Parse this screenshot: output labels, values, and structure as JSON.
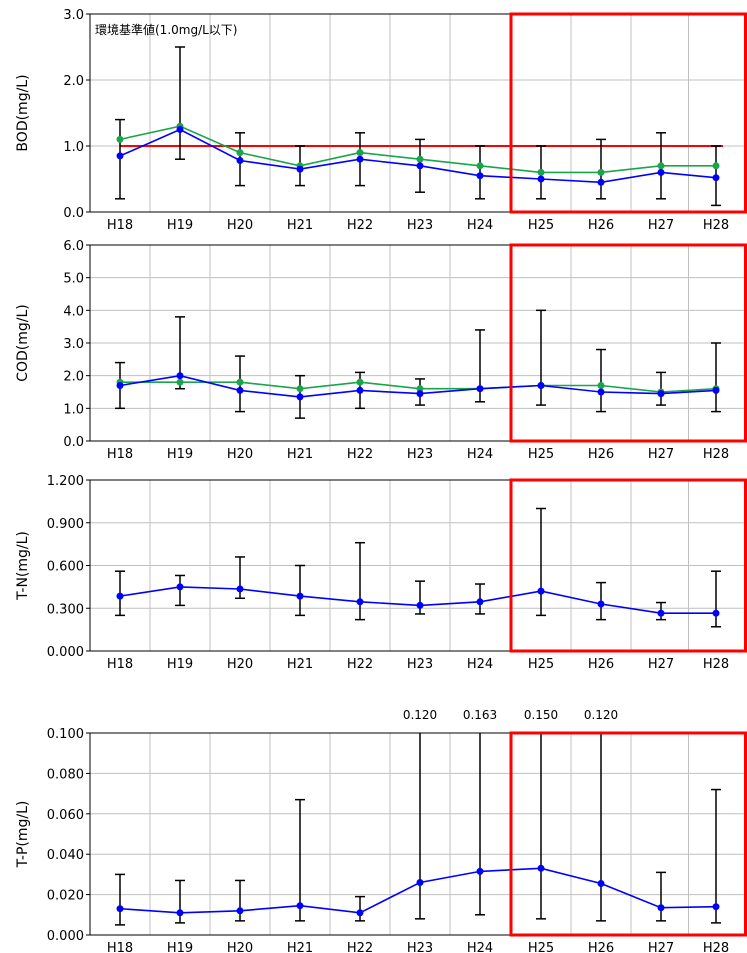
{
  "colors": {
    "series_blue": "#0000ff",
    "series_green": "#19a64a",
    "error_bar": "#000000",
    "standard_line": "#ff0000",
    "highlight_box": "#ff0000",
    "grid": "#c0c0c0",
    "axis": "#000000"
  },
  "chart_data": [
    {
      "type": "line",
      "ylabel": "BOD(mg/L)",
      "categories": [
        "H18",
        "H19",
        "H20",
        "H21",
        "H22",
        "H23",
        "H24",
        "H25",
        "H26",
        "H27",
        "H28"
      ],
      "ylim": [
        0,
        3.0
      ],
      "yticks": [
        0,
        1.0,
        2.0,
        3.0
      ],
      "ytick_labels": [
        "0.0",
        "1.0",
        "2.0",
        "3.0"
      ],
      "grid": true,
      "series": [
        {
          "color": "blue",
          "values": [
            0.85,
            1.25,
            0.78,
            0.65,
            0.8,
            0.7,
            0.55,
            0.5,
            0.45,
            0.6,
            0.52
          ]
        },
        {
          "color": "green",
          "values": [
            1.1,
            1.3,
            0.9,
            0.7,
            0.9,
            0.8,
            0.7,
            0.6,
            0.6,
            0.7,
            0.7
          ]
        }
      ],
      "error_bars": {
        "min": [
          0.2,
          0.8,
          0.4,
          0.4,
          0.4,
          0.3,
          0.2,
          0.2,
          0.2,
          0.2,
          0.1
        ],
        "max": [
          1.4,
          2.5,
          1.2,
          1.0,
          1.2,
          1.1,
          1.0,
          1.0,
          1.1,
          1.2,
          1.0
        ]
      },
      "reference_line": {
        "value": 1.0,
        "from": "H18",
        "to": "H28",
        "label": "環境基準値(1.0mg/L以下)"
      },
      "highlight": {
        "from": "H25",
        "to": "H28"
      }
    },
    {
      "type": "line",
      "ylabel": "COD(mg/L)",
      "categories": [
        "H18",
        "H19",
        "H20",
        "H21",
        "H22",
        "H23",
        "H24",
        "H25",
        "H26",
        "H27",
        "H28"
      ],
      "ylim": [
        0,
        6.0
      ],
      "yticks": [
        0,
        1.0,
        2.0,
        3.0,
        4.0,
        5.0,
        6.0
      ],
      "ytick_labels": [
        "0.0",
        "1.0",
        "2.0",
        "3.0",
        "4.0",
        "5.0",
        "6.0"
      ],
      "grid": true,
      "series": [
        {
          "color": "blue",
          "values": [
            1.7,
            2.0,
            1.55,
            1.35,
            1.55,
            1.45,
            1.6,
            1.7,
            1.5,
            1.45,
            1.55
          ]
        },
        {
          "color": "green",
          "values": [
            1.8,
            1.8,
            1.8,
            1.6,
            1.8,
            1.6,
            1.6,
            1.7,
            1.7,
            1.5,
            1.6
          ]
        }
      ],
      "error_bars": {
        "min": [
          1.0,
          1.6,
          0.9,
          0.7,
          1.0,
          1.1,
          1.2,
          1.1,
          0.9,
          1.1,
          0.9
        ],
        "max": [
          2.4,
          3.8,
          2.6,
          2.0,
          2.1,
          1.9,
          3.4,
          4.0,
          2.8,
          2.1,
          3.0
        ]
      },
      "highlight": {
        "from": "H25",
        "to": "H28"
      }
    },
    {
      "type": "line",
      "ylabel": "T-N(mg/L)",
      "categories": [
        "H18",
        "H19",
        "H20",
        "H21",
        "H22",
        "H23",
        "H24",
        "H25",
        "H26",
        "H27",
        "H28"
      ],
      "ylim": [
        0,
        1.2
      ],
      "yticks": [
        0,
        0.3,
        0.6,
        0.9,
        1.2
      ],
      "ytick_labels": [
        "0.000",
        "0.300",
        "0.600",
        "0.900",
        "1.200"
      ],
      "grid": true,
      "series": [
        {
          "color": "blue",
          "values": [
            0.385,
            0.45,
            0.435,
            0.385,
            0.345,
            0.32,
            0.345,
            0.42,
            0.33,
            0.265,
            0.265
          ]
        }
      ],
      "error_bars": {
        "min": [
          0.25,
          0.32,
          0.37,
          0.25,
          0.22,
          0.26,
          0.26,
          0.25,
          0.22,
          0.22,
          0.17
        ],
        "max": [
          0.56,
          0.53,
          0.66,
          0.6,
          0.76,
          0.49,
          0.47,
          1.0,
          0.48,
          0.34,
          0.56
        ]
      },
      "highlight": {
        "from": "H25",
        "to": "H28"
      }
    },
    {
      "type": "line",
      "ylabel": "T-P(mg/L)",
      "categories": [
        "H18",
        "H19",
        "H20",
        "H21",
        "H22",
        "H23",
        "H24",
        "H25",
        "H26",
        "H27",
        "H28"
      ],
      "ylim": [
        0,
        0.1
      ],
      "yticks": [
        0,
        0.02,
        0.04,
        0.06,
        0.08,
        0.1
      ],
      "ytick_labels": [
        "0.000",
        "0.020",
        "0.040",
        "0.060",
        "0.080",
        "0.100"
      ],
      "grid": true,
      "series": [
        {
          "color": "blue",
          "values": [
            0.013,
            0.011,
            0.012,
            0.0145,
            0.011,
            0.026,
            0.0315,
            0.033,
            0.0255,
            0.0135,
            0.014
          ]
        }
      ],
      "error_bars": {
        "min": [
          0.005,
          0.006,
          0.007,
          0.007,
          0.007,
          0.008,
          0.01,
          0.008,
          0.007,
          0.007,
          0.006
        ],
        "max": [
          0.03,
          0.027,
          0.027,
          0.067,
          0.019,
          0.12,
          0.163,
          0.15,
          0.12,
          0.031,
          0.072
        ]
      },
      "clipped_max_labels": [
        "",
        "",
        "",
        "",
        "",
        "0.120",
        "0.163",
        "0.150",
        "0.120",
        "",
        ""
      ],
      "highlight": {
        "from": "H25",
        "to": "H28"
      }
    }
  ]
}
